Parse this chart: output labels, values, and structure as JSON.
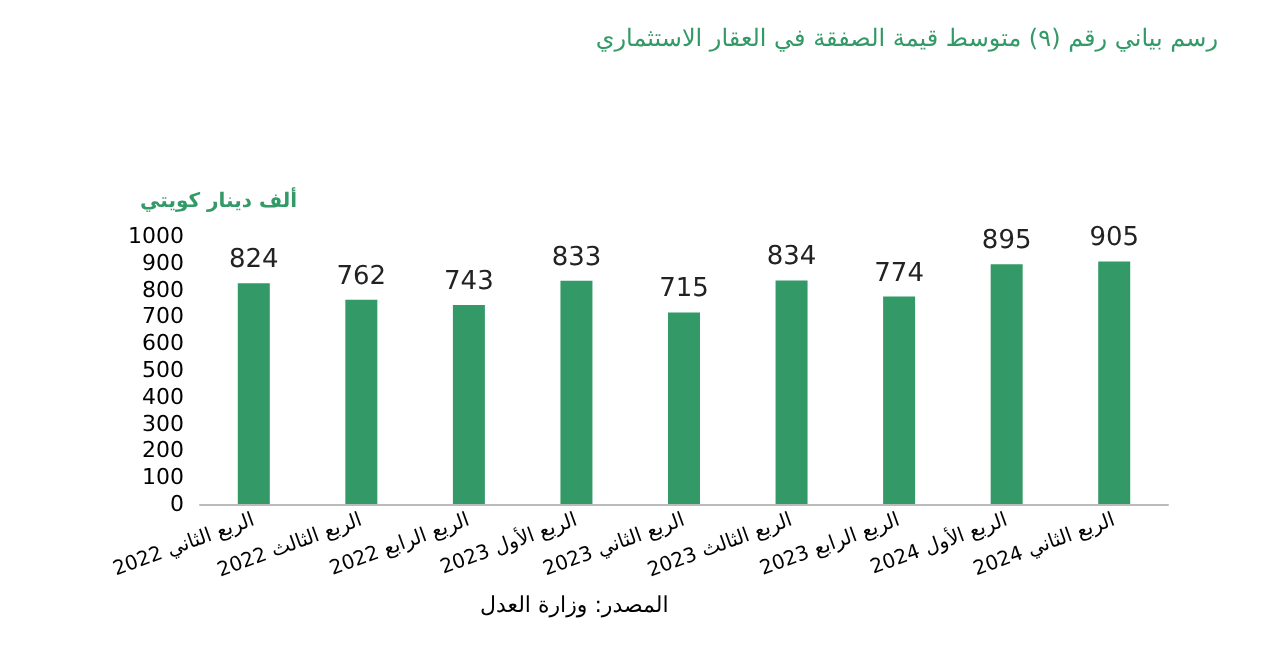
{
  "chart_data": {
    "type": "bar",
    "title": "رسم بياني رقم (٩) متوسط قيمة الصفقة في العقار الاستثماري",
    "ylabel": "ألف دينار كويتي",
    "categories": [
      "الربع الثاني 2022",
      "الربع الثالث 2022",
      "الربع الرابع 2022",
      "الربع الأول 2023",
      "الربع الثاني 2023",
      "الربع الثالث 2023",
      "الربع الرابع 2023",
      "الربع الأول 2024",
      "الربع الثاني 2024"
    ],
    "values": [
      824,
      762,
      743,
      833,
      715,
      834,
      774,
      895,
      905
    ],
    "color": "#339966",
    "ylim": [
      0,
      1000
    ],
    "yticks": [
      0,
      100,
      200,
      300,
      400,
      500,
      600,
      700,
      800,
      900,
      1000
    ],
    "grid": false,
    "data_labels": true,
    "annotations": [
      "المصدر: وزارة العدل"
    ]
  }
}
